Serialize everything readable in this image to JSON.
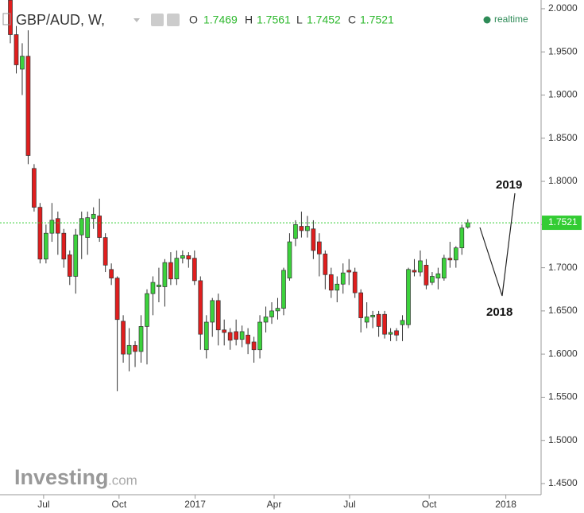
{
  "chart_data": {
    "type": "candlestick",
    "title": "GBP/AUD, W,",
    "ohlc_labels": [
      "O",
      "H",
      "L",
      "C"
    ],
    "status": "realtime",
    "watermark": [
      "Investing",
      ".com"
    ],
    "annotations": [
      "2019",
      "2018"
    ],
    "open": [
      2.01,
      1.97,
      1.93,
      1.945,
      1.815,
      1.77,
      1.71,
      1.74,
      1.757,
      1.74,
      1.715,
      1.69,
      1.738,
      1.735,
      1.757,
      1.76,
      1.735,
      1.698,
      1.688,
      1.638,
      1.6,
      1.61,
      1.603,
      1.632,
      1.67,
      1.678,
      1.678,
      1.706,
      1.687,
      1.711,
      1.714,
      1.711,
      1.685,
      1.605,
      1.637,
      1.662,
      1.628,
      1.625,
      1.626,
      1.617,
      1.622,
      1.614,
      1.605,
      1.637,
      1.643,
      1.65,
      1.653,
      1.688,
      1.734,
      1.748,
      1.743,
      1.745,
      1.73,
      1.716,
      1.692,
      1.674,
      1.681,
      1.697,
      1.695,
      1.671,
      1.637,
      1.643,
      1.646,
      1.646,
      1.623,
      1.627,
      1.634,
      1.634,
      1.697,
      1.695,
      1.703,
      1.683,
      1.688,
      1.688,
      1.711,
      1.709,
      1.723,
      1.7469
    ],
    "high": [
      2.02,
      1.98,
      1.96,
      1.975,
      1.82,
      1.775,
      1.75,
      1.775,
      1.765,
      1.745,
      1.72,
      1.745,
      1.765,
      1.765,
      1.77,
      1.78,
      1.74,
      1.705,
      1.69,
      1.645,
      1.63,
      1.615,
      1.645,
      1.675,
      1.69,
      1.7,
      1.71,
      1.718,
      1.72,
      1.72,
      1.718,
      1.72,
      1.69,
      1.645,
      1.665,
      1.67,
      1.64,
      1.63,
      1.64,
      1.633,
      1.63,
      1.62,
      1.645,
      1.655,
      1.66,
      1.665,
      1.7,
      1.74,
      1.755,
      1.765,
      1.76,
      1.755,
      1.74,
      1.72,
      1.7,
      1.69,
      1.705,
      1.71,
      1.7,
      1.675,
      1.66,
      1.65,
      1.65,
      1.65,
      1.63,
      1.63,
      1.645,
      1.7,
      1.71,
      1.72,
      1.71,
      1.695,
      1.7,
      1.715,
      1.73,
      1.725,
      1.75,
      1.7561
    ],
    "low": [
      1.96,
      1.925,
      1.9,
      1.82,
      1.765,
      1.705,
      1.705,
      1.73,
      1.715,
      1.7,
      1.68,
      1.67,
      1.71,
      1.715,
      1.745,
      1.73,
      1.695,
      1.68,
      1.557,
      1.59,
      1.58,
      1.585,
      1.59,
      1.588,
      1.645,
      1.66,
      1.655,
      1.68,
      1.68,
      1.705,
      1.7,
      1.68,
      1.605,
      1.595,
      1.62,
      1.61,
      1.61,
      1.605,
      1.61,
      1.608,
      1.6,
      1.59,
      1.595,
      1.625,
      1.635,
      1.64,
      1.645,
      1.685,
      1.725,
      1.735,
      1.735,
      1.71,
      1.69,
      1.675,
      1.665,
      1.66,
      1.67,
      1.68,
      1.665,
      1.625,
      1.63,
      1.63,
      1.62,
      1.618,
      1.615,
      1.615,
      1.615,
      1.63,
      1.69,
      1.69,
      1.675,
      1.68,
      1.675,
      1.685,
      1.7,
      1.7,
      1.715,
      1.7452
    ],
    "close": [
      1.97,
      1.935,
      1.945,
      1.83,
      1.77,
      1.71,
      1.74,
      1.755,
      1.74,
      1.71,
      1.69,
      1.738,
      1.757,
      1.758,
      1.762,
      1.735,
      1.703,
      1.688,
      1.64,
      1.6,
      1.61,
      1.603,
      1.632,
      1.67,
      1.683,
      1.68,
      1.706,
      1.687,
      1.711,
      1.714,
      1.71,
      1.685,
      1.623,
      1.637,
      1.662,
      1.628,
      1.625,
      1.616,
      1.617,
      1.626,
      1.612,
      1.605,
      1.637,
      1.643,
      1.65,
      1.653,
      1.697,
      1.73,
      1.75,
      1.743,
      1.748,
      1.72,
      1.716,
      1.692,
      1.674,
      1.681,
      1.694,
      1.695,
      1.671,
      1.642,
      1.643,
      1.645,
      1.632,
      1.623,
      1.625,
      1.622,
      1.639,
      1.698,
      1.695,
      1.708,
      1.68,
      1.69,
      1.693,
      1.711,
      1.709,
      1.723,
      1.746,
      1.7521
    ],
    "up_color": "#3cd23c",
    "down_color": "#e01e1e",
    "last_line_color": "#33cc33",
    "xlim": [
      -1.74,
      89.2
    ],
    "xticks": [
      {
        "value": 5.6,
        "label": "Jul"
      },
      {
        "value": 18.3,
        "label": "Oct"
      },
      {
        "value": 31.1,
        "label": "2017"
      },
      {
        "value": 44.4,
        "label": "Apr"
      },
      {
        "value": 57.1,
        "label": "Jul"
      },
      {
        "value": 70.5,
        "label": "Oct"
      },
      {
        "value": 83.4,
        "label": "2018"
      }
    ],
    "ylim": [
      1.4371,
      2.0101
    ],
    "yticks": [
      {
        "value": 2.0,
        "label": "2.0000"
      },
      {
        "value": 1.95,
        "label": "1.9500"
      },
      {
        "value": 1.9,
        "label": "1.9000"
      },
      {
        "value": 1.85,
        "label": "1.8500"
      },
      {
        "value": 1.8,
        "label": "1.8000"
      },
      {
        "value": 1.75,
        "label": "1.7500"
      },
      {
        "value": 1.7,
        "label": "1.7000"
      },
      {
        "value": 1.65,
        "label": "1.6500"
      },
      {
        "value": 1.6,
        "label": "1.6000"
      },
      {
        "value": 1.55,
        "label": "1.5500"
      },
      {
        "value": 1.5,
        "label": "1.5000"
      },
      {
        "value": 1.45,
        "label": "1.4500"
      }
    ],
    "grid": false
  }
}
